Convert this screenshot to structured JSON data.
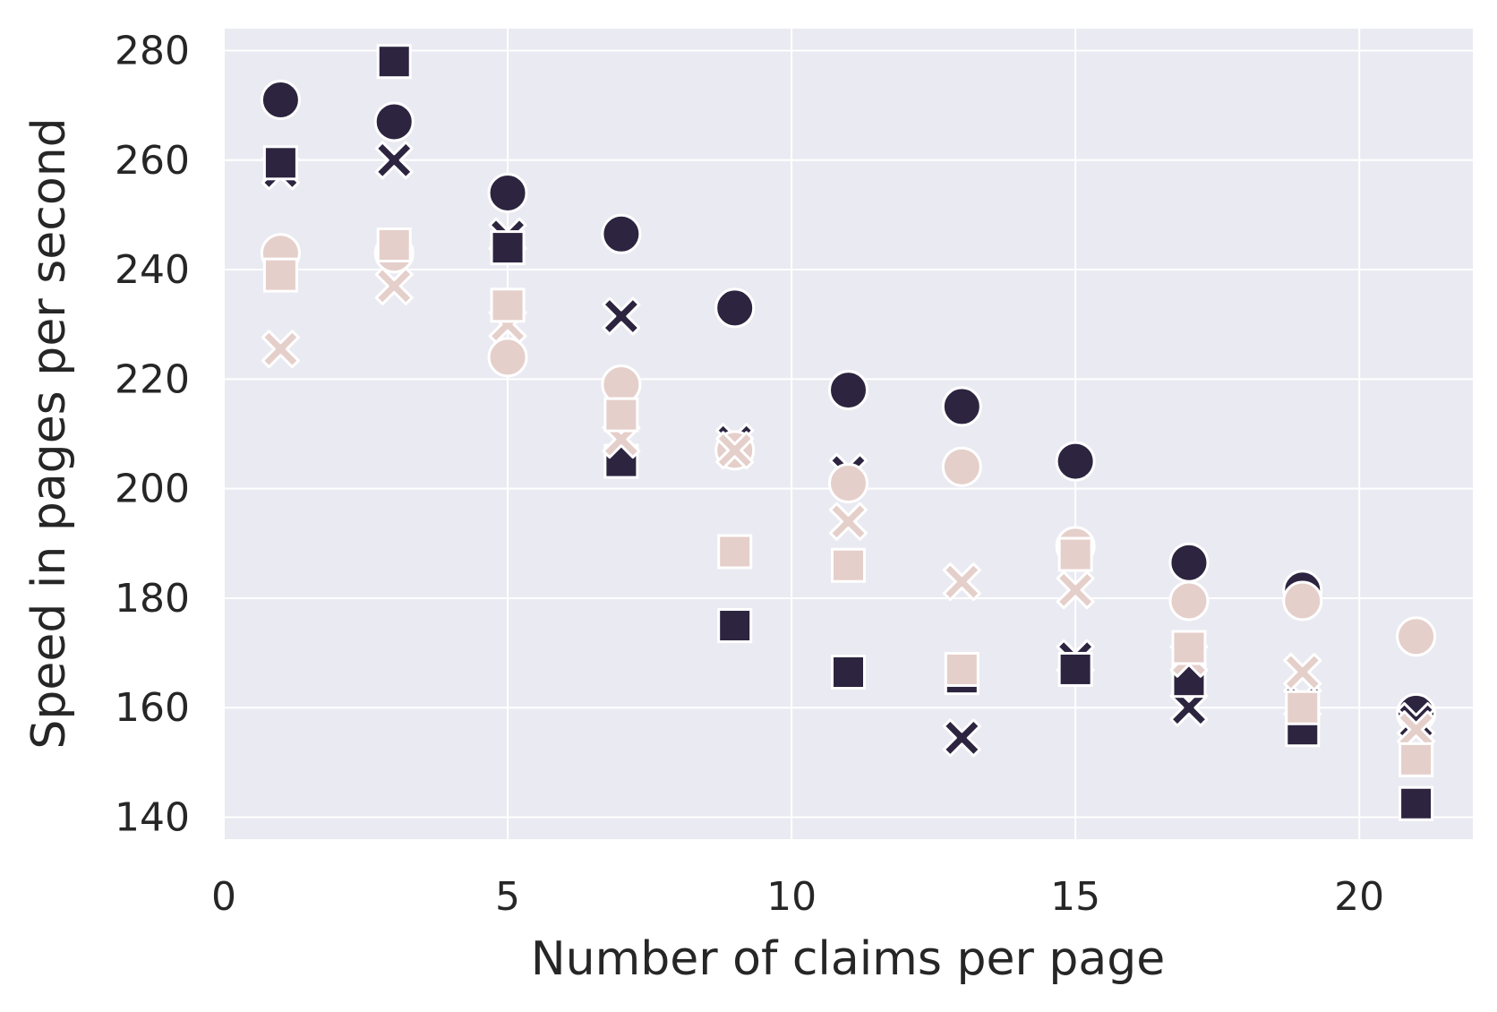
{
  "chart_data": {
    "type": "scatter",
    "title": "",
    "xlabel": "Number of claims per page",
    "ylabel": "Speed in pages per second",
    "xlim": [
      0,
      22
    ],
    "ylim": [
      136,
      284
    ],
    "xticks": [
      0,
      5,
      10,
      15,
      20
    ],
    "yticks": [
      140,
      160,
      180,
      200,
      220,
      240,
      260,
      280
    ],
    "grid": true,
    "background": "#EAEAF2",
    "grid_color": "#FFFFFF",
    "legend": "none",
    "series": [
      {
        "marker": "circle",
        "color": "#2D2440",
        "x": [
          1,
          3,
          5,
          7,
          9,
          11,
          13,
          15,
          17,
          19,
          21
        ],
        "y": [
          271,
          267,
          254,
          246.5,
          233,
          218,
          215,
          205,
          186.5,
          181.5,
          159
        ]
      },
      {
        "marker": "x",
        "color": "#2D2440",
        "x": [
          1,
          3,
          5,
          7,
          9,
          11,
          13,
          15,
          17,
          19,
          21
        ],
        "y": [
          258,
          260,
          246,
          231.5,
          208.5,
          203,
          154.5,
          169,
          160,
          161,
          157.5
        ]
      },
      {
        "marker": "square",
        "color": "#2D2440",
        "x": [
          1,
          3,
          5,
          7,
          9,
          11,
          13,
          15,
          17,
          19,
          21
        ],
        "y": [
          259.5,
          278,
          244,
          205,
          175,
          166.5,
          165.5,
          167,
          165,
          156,
          142.5
        ]
      },
      {
        "marker": "circle",
        "color": "#E5CFCA",
        "x": [
          1,
          3,
          5,
          7,
          9,
          11,
          13,
          15,
          17,
          19,
          21
        ],
        "y": [
          243,
          243,
          224,
          219,
          207,
          201,
          204,
          189.5,
          179.5,
          179.5,
          173
        ]
      },
      {
        "marker": "x",
        "color": "#E5CFCA",
        "x": [
          1,
          3,
          5,
          7,
          9,
          11,
          13,
          15,
          17,
          19,
          21
        ],
        "y": [
          225.5,
          237,
          230,
          209,
          207,
          194,
          183,
          181.5,
          169,
          166.5,
          156
        ]
      },
      {
        "marker": "square",
        "color": "#E5CFCA",
        "x": [
          1,
          3,
          5,
          7,
          9,
          11,
          13,
          15,
          17,
          19,
          21
        ],
        "y": [
          239,
          244.5,
          233.5,
          213.5,
          188.5,
          186,
          167,
          188,
          171,
          160,
          150.5
        ]
      }
    ]
  }
}
